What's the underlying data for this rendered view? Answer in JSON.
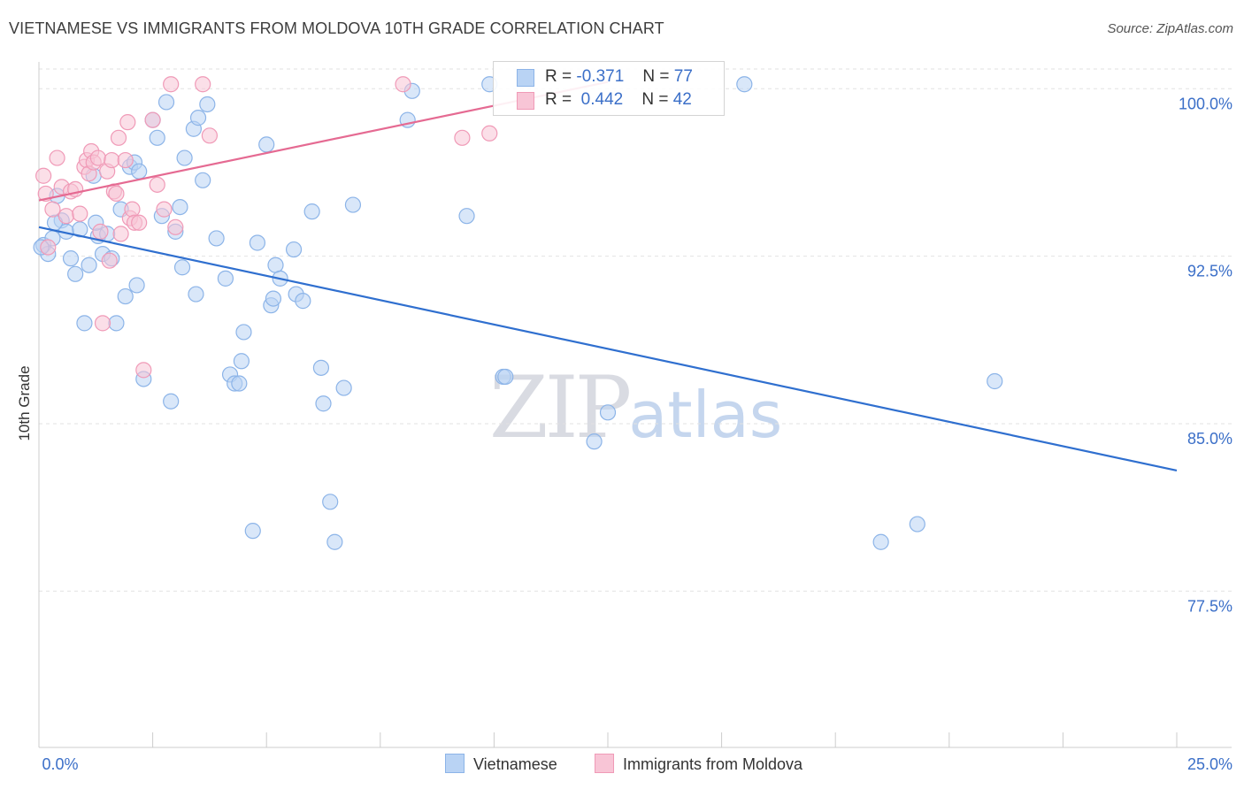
{
  "header": {
    "title": "VIETNAMESE VS IMMIGRANTS FROM MOLDOVA 10TH GRADE CORRELATION CHART",
    "source": "Source: ZipAtlas.com"
  },
  "watermark": {
    "zip": "ZIP",
    "atlas": "atlas"
  },
  "legend": {
    "rows": [
      {
        "r_label": "R =",
        "r_value": "-0.371",
        "n_label": "N =",
        "n_value": "77"
      },
      {
        "r_label": "R =",
        "r_value": "0.442",
        "n_label": "N =",
        "n_value": "42"
      }
    ],
    "bottom": [
      "Vietnamese",
      "Immigrants from Moldova"
    ]
  },
  "colors": {
    "blue_fill": "#b9d3f4",
    "blue_stroke": "#8cb4e8",
    "blue_line": "#2f6fcf",
    "pink_fill": "#f8c5d6",
    "pink_stroke": "#f09ab7",
    "pink_line": "#e56a92",
    "tick_label": "#3b6fc8"
  },
  "chart_data": {
    "type": "scatter",
    "title": "VIETNAMESE VS IMMIGRANTS FROM MOLDOVA 10TH GRADE CORRELATION CHART",
    "xlabel": "",
    "ylabel": "10th Grade",
    "xlim": [
      0,
      25
    ],
    "ylim": [
      70.5,
      101.2
    ],
    "x_tick_labels": [
      "0.0%",
      "25.0%"
    ],
    "y_ticks": [
      77.5,
      85.0,
      92.5,
      100.0
    ],
    "y_tick_labels": [
      "77.5%",
      "85.0%",
      "92.5%",
      "100.0%"
    ],
    "grid": true,
    "legend_position": "top-center",
    "series": [
      {
        "name": "Vietnamese",
        "R": -0.371,
        "N": 77,
        "trend": {
          "x": [
            0,
            25
          ],
          "y": [
            93.8,
            82.9
          ]
        },
        "points": [
          [
            0.1,
            93.0
          ],
          [
            0.2,
            92.6
          ],
          [
            0.3,
            93.3
          ],
          [
            0.4,
            95.2
          ],
          [
            0.5,
            94.1
          ],
          [
            0.6,
            93.6
          ],
          [
            0.7,
            92.4
          ],
          [
            0.8,
            91.7
          ],
          [
            0.9,
            93.7
          ],
          [
            1.0,
            89.5
          ],
          [
            1.1,
            92.1
          ],
          [
            1.2,
            96.1
          ],
          [
            1.3,
            93.4
          ],
          [
            1.4,
            92.6
          ],
          [
            1.5,
            93.5
          ],
          [
            1.6,
            92.4
          ],
          [
            1.7,
            89.5
          ],
          [
            1.8,
            94.6
          ],
          [
            1.9,
            90.7
          ],
          [
            2.0,
            96.5
          ],
          [
            2.1,
            96.7
          ],
          [
            2.15,
            91.2
          ],
          [
            2.2,
            96.3
          ],
          [
            2.3,
            87.0
          ],
          [
            2.5,
            98.6
          ],
          [
            2.6,
            97.8
          ],
          [
            2.7,
            94.3
          ],
          [
            2.8,
            99.4
          ],
          [
            2.9,
            86.0
          ],
          [
            3.0,
            93.6
          ],
          [
            3.1,
            94.7
          ],
          [
            3.15,
            92.0
          ],
          [
            3.2,
            96.9
          ],
          [
            3.4,
            98.2
          ],
          [
            3.45,
            90.8
          ],
          [
            3.5,
            98.7
          ],
          [
            3.6,
            95.9
          ],
          [
            3.7,
            99.3
          ],
          [
            3.9,
            93.3
          ],
          [
            4.1,
            91.5
          ],
          [
            4.2,
            87.2
          ],
          [
            4.3,
            86.8
          ],
          [
            4.4,
            86.8
          ],
          [
            4.45,
            87.8
          ],
          [
            4.5,
            89.1
          ],
          [
            4.7,
            80.2
          ],
          [
            4.8,
            93.1
          ],
          [
            5.0,
            97.5
          ],
          [
            5.1,
            90.3
          ],
          [
            5.15,
            90.6
          ],
          [
            5.2,
            92.1
          ],
          [
            5.3,
            91.5
          ],
          [
            5.6,
            92.8
          ],
          [
            5.65,
            90.8
          ],
          [
            5.8,
            90.5
          ],
          [
            6.0,
            94.5
          ],
          [
            6.2,
            87.5
          ],
          [
            6.25,
            85.9
          ],
          [
            6.4,
            81.5
          ],
          [
            6.5,
            79.7
          ],
          [
            6.7,
            86.6
          ],
          [
            6.9,
            94.8
          ],
          [
            8.1,
            98.6
          ],
          [
            8.2,
            99.9
          ],
          [
            9.4,
            94.3
          ],
          [
            9.9,
            100.2
          ],
          [
            10.2,
            87.1
          ],
          [
            10.25,
            87.1
          ],
          [
            12.2,
            84.2
          ],
          [
            12.5,
            85.5
          ],
          [
            15.5,
            100.2
          ],
          [
            21.0,
            86.9
          ],
          [
            18.5,
            79.7
          ],
          [
            19.3,
            80.5
          ],
          [
            0.05,
            92.9
          ],
          [
            1.25,
            94.0
          ],
          [
            0.35,
            94.0
          ]
        ]
      },
      {
        "name": "Immigrants from Moldova",
        "R": 0.442,
        "N": 42,
        "trend": {
          "x": [
            0,
            12.5
          ],
          "y": [
            95.0,
            100.3
          ]
        },
        "points": [
          [
            0.1,
            96.1
          ],
          [
            0.15,
            95.3
          ],
          [
            0.2,
            92.9
          ],
          [
            0.3,
            94.6
          ],
          [
            0.4,
            96.9
          ],
          [
            0.5,
            95.6
          ],
          [
            0.6,
            94.3
          ],
          [
            0.7,
            95.4
          ],
          [
            0.8,
            95.5
          ],
          [
            0.9,
            94.4
          ],
          [
            1.0,
            96.5
          ],
          [
            1.05,
            96.8
          ],
          [
            1.1,
            96.2
          ],
          [
            1.15,
            97.2
          ],
          [
            1.2,
            96.7
          ],
          [
            1.3,
            96.9
          ],
          [
            1.35,
            93.6
          ],
          [
            1.4,
            89.5
          ],
          [
            1.5,
            96.3
          ],
          [
            1.55,
            92.3
          ],
          [
            1.6,
            96.8
          ],
          [
            1.65,
            95.4
          ],
          [
            1.7,
            95.3
          ],
          [
            1.75,
            97.8
          ],
          [
            1.8,
            93.5
          ],
          [
            1.9,
            96.8
          ],
          [
            1.95,
            98.5
          ],
          [
            2.0,
            94.2
          ],
          [
            2.05,
            94.6
          ],
          [
            2.1,
            94.0
          ],
          [
            2.2,
            94.0
          ],
          [
            2.3,
            87.4
          ],
          [
            2.5,
            98.6
          ],
          [
            2.6,
            95.7
          ],
          [
            2.75,
            94.6
          ],
          [
            2.9,
            100.2
          ],
          [
            3.0,
            93.8
          ],
          [
            3.6,
            100.2
          ],
          [
            3.75,
            97.9
          ],
          [
            8.0,
            100.2
          ],
          [
            9.3,
            97.8
          ],
          [
            9.9,
            98.0
          ]
        ]
      }
    ]
  }
}
